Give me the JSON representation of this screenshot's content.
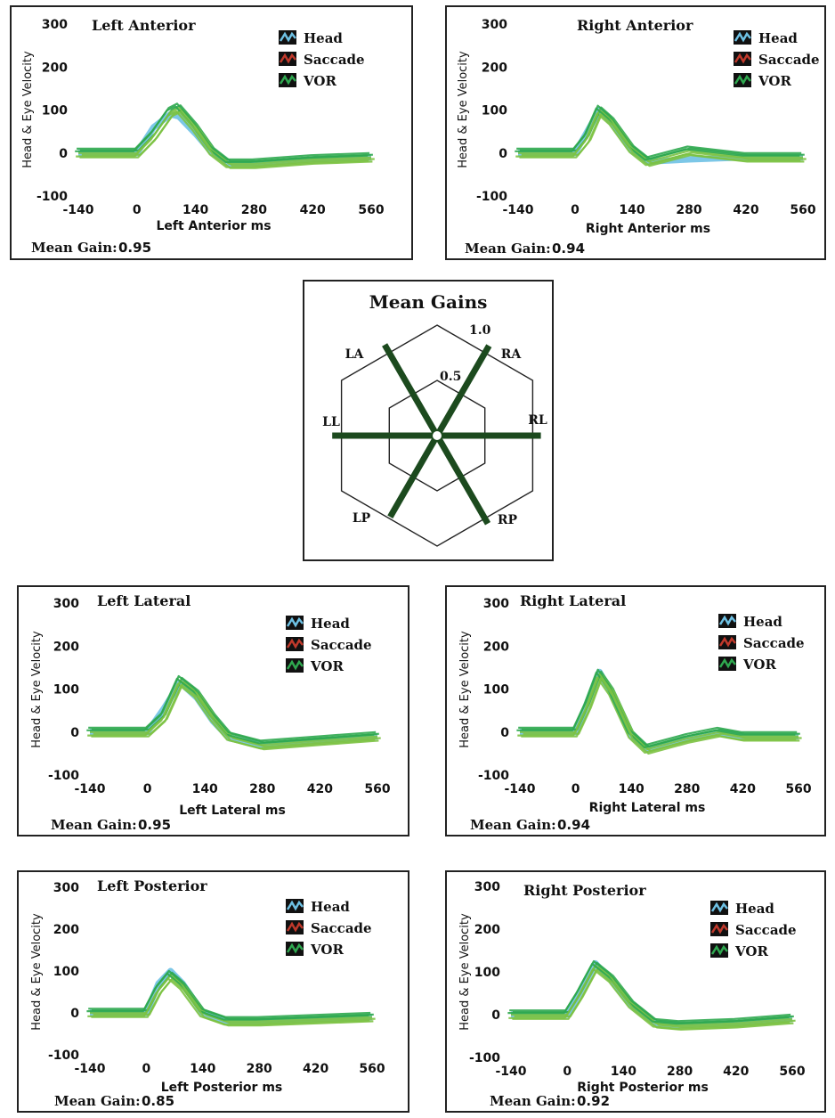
{
  "colors": {
    "head": "#6ec1e4",
    "saccade": "#c0392b",
    "vor": "#2fa84f",
    "vor_light": "#7cc242",
    "radar_spoke": "#1c4a1e"
  },
  "legend": {
    "head": "Head",
    "saccade": "Saccade",
    "vor": "VOR"
  },
  "shared": {
    "ylabel": "Head & Eye Velocity",
    "yticks": [
      "300",
      "200",
      "100",
      "0",
      "-100"
    ],
    "xticks": [
      "-140",
      "0",
      "140",
      "280",
      "420",
      "560"
    ]
  },
  "panels": {
    "la": {
      "title": "Left Anterior",
      "xlabel": "Left Anterior ms",
      "gain_label": "Mean Gain:",
      "gain": "0.95"
    },
    "ra": {
      "title": "Right Anterior",
      "xlabel": "Right Anterior ms",
      "gain_label": "Mean Gain:",
      "gain": "0.94"
    },
    "ll": {
      "title": "Left Lateral",
      "xlabel": "Left Lateral ms",
      "gain_label": "Mean Gain:",
      "gain": "0.95"
    },
    "rl": {
      "title": "Right Lateral",
      "xlabel": "Right Lateral ms",
      "gain_label": "Mean Gain:",
      "gain": "0.94"
    },
    "lp": {
      "title": "Left Posterior",
      "xlabel": "Left Posterior ms",
      "gain_label": "Mean Gain:",
      "gain": "0.85"
    },
    "rp": {
      "title": "Right Posterior",
      "xlabel": "Right Posterior ms",
      "gain_label": "Mean Gain:",
      "gain": "0.92"
    }
  },
  "radar": {
    "title": "Mean Gains",
    "ring_labels": [
      "1.0",
      "0.5"
    ],
    "axes": [
      "LA",
      "RA",
      "RL",
      "RP",
      "LP",
      "LL"
    ]
  },
  "chart_data": [
    {
      "type": "line",
      "title": "Left Anterior",
      "xlabel": "Left Anterior ms",
      "ylabel": "Head & Eye Velocity",
      "xlim": [
        -140,
        560
      ],
      "ylim": [
        -100,
        300
      ],
      "series": [
        {
          "name": "Head",
          "x": [
            -140,
            0,
            40,
            80,
            100,
            140,
            180,
            220,
            280,
            420,
            560
          ],
          "values": [
            0,
            0,
            60,
            90,
            85,
            45,
            0,
            -25,
            -25,
            -15,
            -10
          ]
        },
        {
          "name": "VOR",
          "x": [
            -140,
            0,
            40,
            80,
            100,
            140,
            180,
            220,
            280,
            420,
            560
          ],
          "values": [
            0,
            0,
            40,
            95,
            105,
            60,
            5,
            -25,
            -25,
            -15,
            -10
          ]
        }
      ],
      "mean_gain": 0.95
    },
    {
      "type": "line",
      "title": "Right Anterior",
      "xlabel": "Right Anterior ms",
      "ylabel": "Head & Eye Velocity",
      "xlim": [
        -140,
        560
      ],
      "ylim": [
        -100,
        300
      ],
      "series": [
        {
          "name": "Head",
          "x": [
            -140,
            0,
            30,
            60,
            90,
            140,
            180,
            280,
            420,
            560
          ],
          "values": [
            0,
            0,
            50,
            100,
            70,
            5,
            -20,
            -15,
            -10,
            -10
          ]
        },
        {
          "name": "VOR",
          "x": [
            -140,
            0,
            30,
            60,
            90,
            140,
            180,
            280,
            420,
            560
          ],
          "values": [
            0,
            0,
            35,
            100,
            75,
            10,
            -20,
            5,
            -10,
            -10
          ]
        }
      ],
      "mean_gain": 0.94
    },
    {
      "type": "line",
      "title": "Left Lateral",
      "xlabel": "Left Lateral ms",
      "ylabel": "Head & Eye Velocity",
      "xlim": [
        -140,
        560
      ],
      "ylim": [
        -100,
        300
      ],
      "series": [
        {
          "name": "Head",
          "x": [
            -140,
            0,
            40,
            80,
            120,
            160,
            200,
            280,
            420,
            560
          ],
          "values": [
            0,
            0,
            55,
            115,
            80,
            25,
            -15,
            -30,
            -20,
            -10
          ]
        },
        {
          "name": "VOR",
          "x": [
            -140,
            0,
            40,
            80,
            120,
            160,
            200,
            280,
            420,
            560
          ],
          "values": [
            0,
            0,
            35,
            120,
            90,
            35,
            -10,
            -30,
            -20,
            -10
          ]
        }
      ],
      "mean_gain": 0.95
    },
    {
      "type": "line",
      "title": "Right Lateral",
      "xlabel": "Right Lateral ms",
      "ylabel": "Head & Eye Velocity",
      "xlim": [
        -140,
        560
      ],
      "ylim": [
        -100,
        300
      ],
      "series": [
        {
          "name": "Head",
          "x": [
            -140,
            0,
            30,
            60,
            90,
            140,
            180,
            280,
            360,
            420,
            560
          ],
          "values": [
            0,
            0,
            70,
            140,
            90,
            -10,
            -40,
            -15,
            0,
            -10,
            -10
          ]
        },
        {
          "name": "VOR",
          "x": [
            -140,
            0,
            30,
            60,
            90,
            140,
            180,
            280,
            360,
            420,
            560
          ],
          "values": [
            0,
            0,
            60,
            135,
            95,
            -5,
            -40,
            -15,
            0,
            -10,
            -10
          ]
        }
      ],
      "mean_gain": 0.94
    },
    {
      "type": "line",
      "title": "Left Posterior",
      "xlabel": "Left Posterior ms",
      "ylabel": "Head & Eye Velocity",
      "xlim": [
        -140,
        560
      ],
      "ylim": [
        -100,
        300
      ],
      "series": [
        {
          "name": "Head",
          "x": [
            -140,
            0,
            30,
            60,
            90,
            140,
            200,
            280,
            420,
            560
          ],
          "values": [
            0,
            0,
            70,
            100,
            70,
            0,
            -20,
            -20,
            -15,
            -10
          ]
        },
        {
          "name": "VOR",
          "x": [
            -140,
            0,
            30,
            60,
            90,
            140,
            200,
            280,
            420,
            560
          ],
          "values": [
            0,
            0,
            55,
            90,
            65,
            0,
            -20,
            -20,
            -15,
            -10
          ]
        }
      ],
      "mean_gain": 0.85
    },
    {
      "type": "line",
      "title": "Right Posterior",
      "xlabel": "Right Posterior ms",
      "ylabel": "Head & Eye Velocity",
      "xlim": [
        -140,
        560
      ],
      "ylim": [
        -100,
        300
      ],
      "series": [
        {
          "name": "Head",
          "x": [
            -140,
            0,
            30,
            70,
            110,
            160,
            220,
            280,
            420,
            560
          ],
          "values": [
            0,
            0,
            50,
            120,
            80,
            20,
            -20,
            -25,
            -20,
            -10
          ]
        },
        {
          "name": "VOR",
          "x": [
            -140,
            0,
            30,
            70,
            110,
            160,
            220,
            280,
            420,
            560
          ],
          "values": [
            0,
            0,
            45,
            115,
            85,
            25,
            -20,
            -25,
            -20,
            -10
          ]
        }
      ],
      "mean_gain": 0.92
    },
    {
      "type": "radar",
      "title": "Mean Gains",
      "categories": [
        "LA",
        "RA",
        "RL",
        "RP",
        "LP",
        "LL"
      ],
      "values": [
        0.95,
        0.94,
        0.94,
        0.92,
        0.85,
        0.95
      ],
      "rings": [
        0.5,
        1.0
      ]
    }
  ]
}
